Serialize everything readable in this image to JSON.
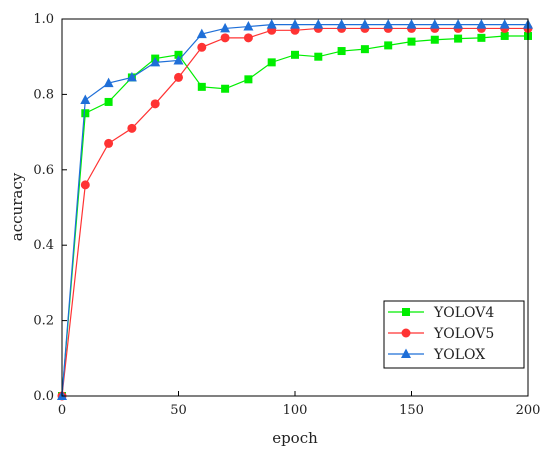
{
  "chart_data": {
    "type": "line",
    "title": "",
    "xlabel": "epoch",
    "ylabel": "accuracy",
    "xlim": [
      0,
      200
    ],
    "ylim": [
      0,
      1.0
    ],
    "xticks": [
      0,
      50,
      100,
      150,
      200
    ],
    "yticks": [
      0.0,
      0.2,
      0.4,
      0.6,
      0.8,
      1.0
    ],
    "xtick_labels": [
      "0",
      "50",
      "100",
      "150",
      "200"
    ],
    "ytick_labels": [
      "0.0",
      "0.2",
      "0.4",
      "0.6",
      "0.8",
      "1.0"
    ],
    "grid": false,
    "legend_position": "bottom-right",
    "x": [
      0,
      10,
      20,
      30,
      40,
      50,
      60,
      70,
      80,
      90,
      100,
      110,
      120,
      130,
      140,
      150,
      160,
      170,
      180,
      190,
      200
    ],
    "series": [
      {
        "name": "YOLOV4",
        "color": "#00ee00",
        "marker": "square",
        "values": [
          0.0,
          0.75,
          0.78,
          0.845,
          0.895,
          0.905,
          0.82,
          0.815,
          0.84,
          0.885,
          0.905,
          0.9,
          0.915,
          0.92,
          0.93,
          0.94,
          0.945,
          0.948,
          0.95,
          0.955,
          0.955
        ]
      },
      {
        "name": "YOLOV5",
        "color": "#ff3333",
        "marker": "circle",
        "values": [
          0.0,
          0.56,
          0.67,
          0.71,
          0.775,
          0.845,
          0.925,
          0.95,
          0.95,
          0.97,
          0.97,
          0.975,
          0.975,
          0.975,
          0.975,
          0.975,
          0.975,
          0.975,
          0.975,
          0.975,
          0.975
        ]
      },
      {
        "name": "YOLOX",
        "color": "#1f6fd8",
        "marker": "triangle",
        "values": [
          0.0,
          0.785,
          0.83,
          0.845,
          0.885,
          0.89,
          0.96,
          0.975,
          0.98,
          0.985,
          0.985,
          0.985,
          0.985,
          0.985,
          0.985,
          0.985,
          0.985,
          0.985,
          0.985,
          0.985,
          0.985
        ]
      }
    ]
  }
}
